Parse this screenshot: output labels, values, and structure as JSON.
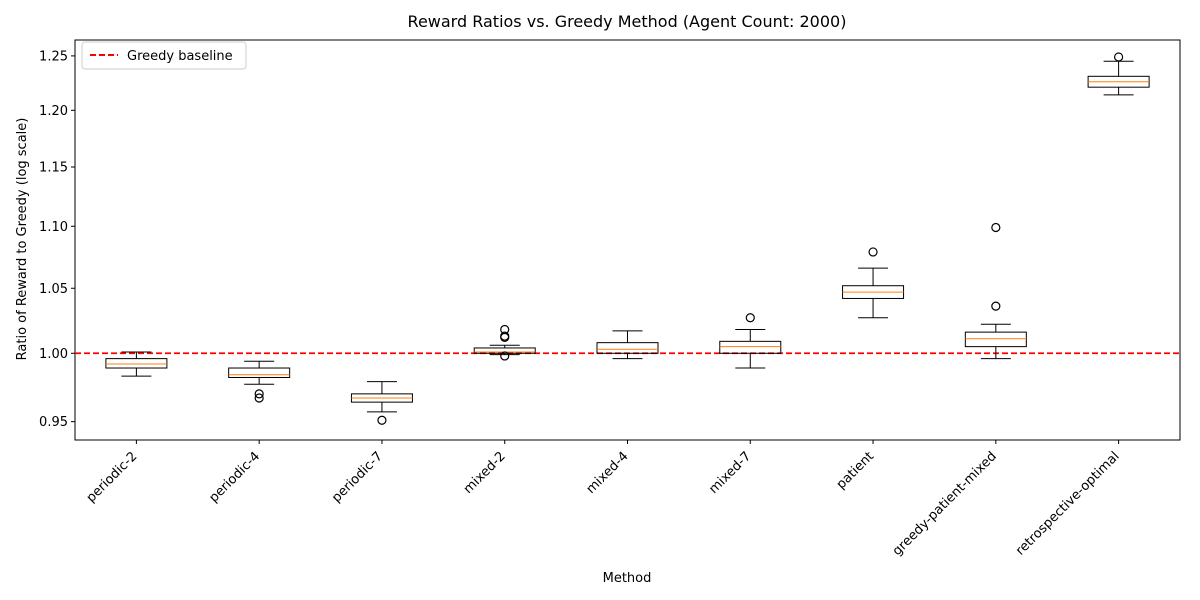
{
  "chart_data": {
    "type": "box",
    "title": "Reward Ratios vs. Greedy Method (Agent Count: 2000)",
    "xlabel": "Method",
    "ylabel": "Ratio of Reward to Greedy (log scale)",
    "yscale": "log",
    "ylim": [
      0.937,
      1.265
    ],
    "yticks": [
      "0.95",
      "1.00",
      "1.05",
      "1.10",
      "1.15",
      "1.20",
      "1.25"
    ],
    "ytick_values": [
      0.95,
      1.0,
      1.05,
      1.1,
      1.15,
      1.2,
      1.25
    ],
    "reference_line": {
      "value": 1.0,
      "label": "Greedy baseline",
      "color": "#ff0000",
      "style": "dashed"
    },
    "legend_position": "upper-left",
    "grid": false,
    "box_color": "#000000",
    "median_color": "#ff7f0e",
    "categories": [
      "periodic-2",
      "periodic-4",
      "periodic-7",
      "mixed-2",
      "mixed-4",
      "mixed-7",
      "patient",
      "greedy-patient-mixed",
      "retrospective-optimal"
    ],
    "boxes": [
      {
        "category": "periodic-2",
        "whisker_low": 0.983,
        "q1": 0.989,
        "median": 0.992,
        "q3": 0.996,
        "whisker_high": 1.001,
        "outliers": []
      },
      {
        "category": "periodic-4",
        "whisker_low": 0.977,
        "q1": 0.982,
        "median": 0.984,
        "q3": 0.989,
        "whisker_high": 0.994,
        "outliers": [
          0.967,
          0.97
        ]
      },
      {
        "category": "periodic-7",
        "whisker_low": 0.957,
        "q1": 0.964,
        "median": 0.967,
        "q3": 0.97,
        "whisker_high": 0.979,
        "outliers": [
          0.951
        ]
      },
      {
        "category": "mixed-2",
        "whisker_low": 0.999,
        "q1": 1.0,
        "median": 1.001,
        "q3": 1.004,
        "whisker_high": 1.006,
        "outliers": [
          0.998,
          1.012,
          1.013,
          1.018
        ]
      },
      {
        "category": "mixed-4",
        "whisker_low": 0.996,
        "q1": 1.0,
        "median": 1.003,
        "q3": 1.008,
        "whisker_high": 1.017,
        "outliers": []
      },
      {
        "category": "mixed-7",
        "whisker_low": 0.989,
        "q1": 1.0,
        "median": 1.005,
        "q3": 1.009,
        "whisker_high": 1.018,
        "outliers": [
          1.027
        ]
      },
      {
        "category": "patient",
        "whisker_low": 1.027,
        "q1": 1.042,
        "median": 1.047,
        "q3": 1.052,
        "whisker_high": 1.066,
        "outliers": [
          1.079
        ]
      },
      {
        "category": "greedy-patient-mixed",
        "whisker_low": 0.996,
        "q1": 1.005,
        "median": 1.011,
        "q3": 1.016,
        "whisker_high": 1.022,
        "outliers": [
          1.036,
          1.099
        ]
      },
      {
        "category": "retrospective-optimal",
        "whisker_low": 1.214,
        "q1": 1.221,
        "median": 1.226,
        "q3": 1.231,
        "whisker_high": 1.245,
        "outliers": [
          1.249
        ]
      }
    ]
  }
}
